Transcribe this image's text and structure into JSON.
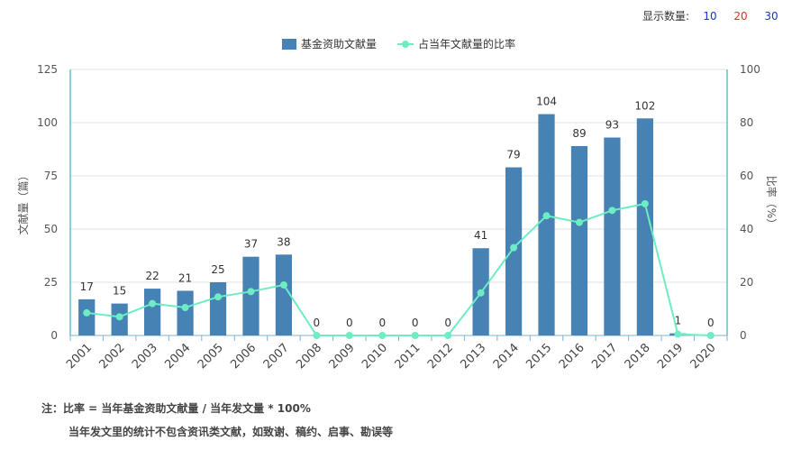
{
  "display_count": {
    "label": "显示数量:",
    "options": [
      {
        "value": "10",
        "color": "#1a33cc"
      },
      {
        "value": "20",
        "color": "#d93025"
      },
      {
        "value": "30",
        "color": "#1a33cc"
      }
    ]
  },
  "notes": {
    "line1": "注：比率 = 当年基金资助文献量 / 当年发文量 * 100%",
    "line2": "当年发文里的统计不包含资讯类文献，如致谢、稿约、启事、勘误等"
  },
  "chart_data": {
    "type": "bar",
    "categories": [
      "2001",
      "2002",
      "2003",
      "2004",
      "2005",
      "2006",
      "2007",
      "2008",
      "2009",
      "2010",
      "2011",
      "2012",
      "2013",
      "2014",
      "2015",
      "2016",
      "2017",
      "2018",
      "2019",
      "2020"
    ],
    "series": [
      {
        "name": "基金资助文献量",
        "type": "bar",
        "axis": "left",
        "color": "#4682b4",
        "values": [
          17,
          15,
          22,
          21,
          25,
          37,
          38,
          0,
          0,
          0,
          0,
          0,
          41,
          79,
          104,
          89,
          93,
          102,
          1,
          0
        ]
      },
      {
        "name": "占当年文献量的比率",
        "type": "line",
        "axis": "right",
        "color": "#6eecc4",
        "values": [
          8.5,
          7,
          12,
          10.5,
          14.5,
          16.5,
          19,
          0,
          0,
          0,
          0,
          0,
          16,
          33,
          45,
          42.5,
          47,
          49.5,
          0.5,
          0
        ]
      }
    ],
    "ylabel": "文献量（篇）",
    "y2label": "比率（%）",
    "ylim": [
      0,
      125
    ],
    "yticks": [
      0,
      25,
      50,
      75,
      100,
      125
    ],
    "y2lim": [
      0,
      100
    ],
    "y2ticks": [
      0,
      20,
      40,
      60,
      80,
      100
    ],
    "grid": true,
    "legend": "top-center"
  }
}
